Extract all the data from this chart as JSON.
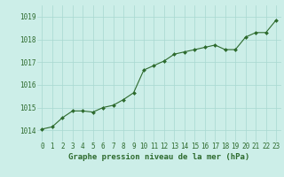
{
  "x": [
    0,
    1,
    2,
    3,
    4,
    5,
    6,
    7,
    8,
    9,
    10,
    11,
    12,
    13,
    14,
    15,
    16,
    17,
    18,
    19,
    20,
    21,
    22,
    23
  ],
  "y": [
    1014.05,
    1014.15,
    1014.55,
    1014.85,
    1014.85,
    1014.8,
    1015.0,
    1015.1,
    1015.35,
    1015.65,
    1016.65,
    1016.85,
    1017.05,
    1017.35,
    1017.45,
    1017.55,
    1017.65,
    1017.75,
    1017.55,
    1017.55,
    1018.1,
    1018.3,
    1018.3,
    1018.85
  ],
  "line_color": "#2d6a2d",
  "marker": "D",
  "marker_size": 2.0,
  "line_width": 0.8,
  "bg_color": "#cceee8",
  "grid_color": "#a8d8d0",
  "xlabel": "Graphe pression niveau de la mer (hPa)",
  "xlabel_color": "#2d6a2d",
  "xlabel_fontsize": 6.5,
  "tick_color": "#2d6a2d",
  "tick_fontsize": 5.5,
  "ytick_fontsize": 5.5,
  "ylim": [
    1013.5,
    1019.5
  ],
  "yticks": [
    1014,
    1015,
    1016,
    1017,
    1018,
    1019
  ],
  "xlim": [
    -0.5,
    23.5
  ],
  "xticks": [
    0,
    1,
    2,
    3,
    4,
    5,
    6,
    7,
    8,
    9,
    10,
    11,
    12,
    13,
    14,
    15,
    16,
    17,
    18,
    19,
    20,
    21,
    22,
    23
  ]
}
